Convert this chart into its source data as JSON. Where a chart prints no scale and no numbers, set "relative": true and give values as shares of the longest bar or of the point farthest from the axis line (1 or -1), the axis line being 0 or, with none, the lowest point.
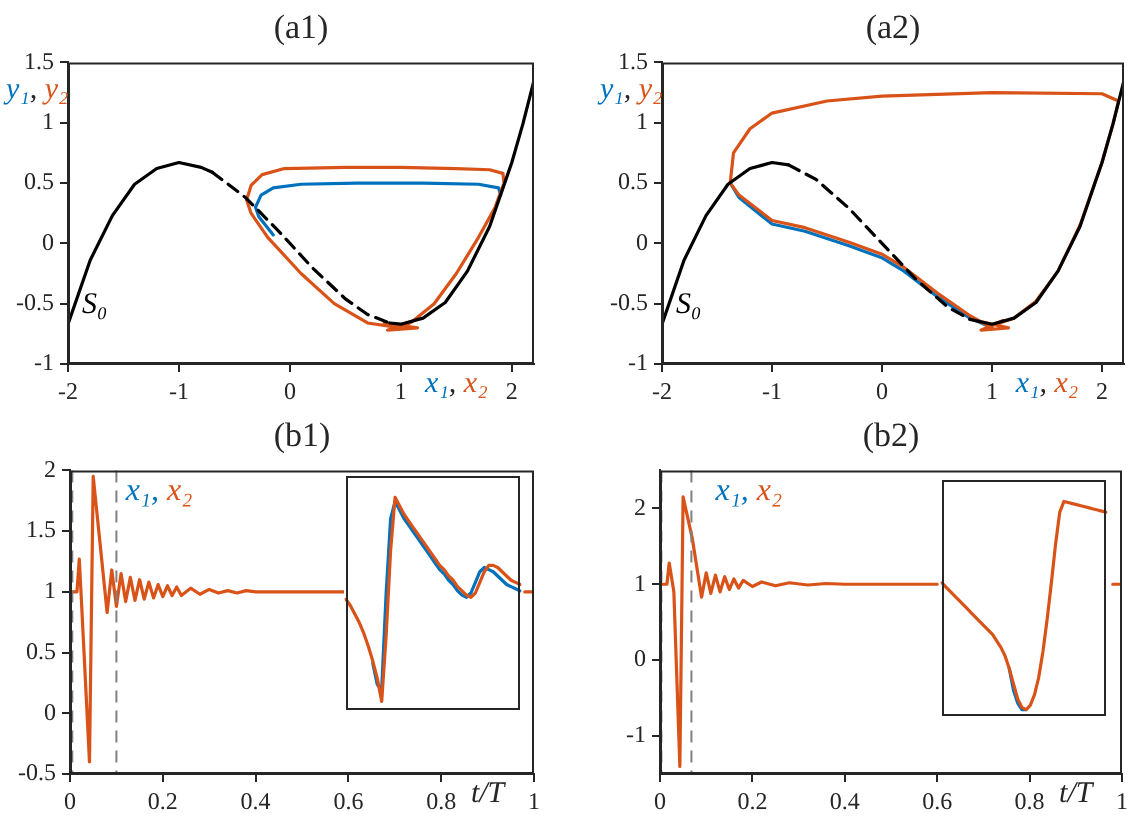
{
  "chart_data": [
    {
      "type": "line",
      "title": "(a1)",
      "xlabel": "x₁, x₂",
      "ylabel": "y₁, y₂",
      "xlim": [
        -2,
        2.2
      ],
      "xticks": [
        -2,
        -1,
        0,
        1,
        2
      ],
      "ylim": [
        -1,
        1.5
      ],
      "yticks": [
        -1,
        -0.5,
        0,
        0.5,
        1,
        1.5
      ],
      "series": [
        {
          "color": "#0072bd",
          "x": [
            -0.15,
            -0.28,
            -0.31,
            -0.26,
            -0.15,
            0.1,
            0.6,
            1.2,
            1.7,
            1.88,
            1.9
          ],
          "values": [
            0.07,
            0.22,
            0.3,
            0.4,
            0.46,
            0.49,
            0.5,
            0.5,
            0.49,
            0.46,
            0.4
          ]
        },
        {
          "color": "#d95319",
          "x": [
            1.0,
            0.7,
            0.4,
            0.1,
            -0.2,
            -0.35,
            -0.39,
            -0.35,
            -0.25,
            -0.05,
            0.5,
            1.0,
            1.5,
            1.8,
            1.92,
            1.93,
            1.85,
            1.7,
            1.5,
            1.3,
            1.1,
            1.0,
            0.85,
            1.15,
            0.88,
            1.12,
            0.92,
            1.08,
            1.0
          ],
          "values": [
            -0.7,
            -0.66,
            -0.5,
            -0.25,
            0.05,
            0.25,
            0.36,
            0.48,
            0.57,
            0.62,
            0.63,
            0.63,
            0.62,
            0.61,
            0.58,
            0.5,
            0.3,
            0.05,
            -0.25,
            -0.5,
            -0.65,
            -0.7,
            -0.66,
            -0.7,
            -0.72,
            -0.64,
            -0.7,
            -0.66,
            -0.68
          ]
        },
        {
          "name": "S₀",
          "color": "#000000",
          "line_style": "solid",
          "x": [
            -2,
            -1.8,
            -1.6,
            -1.4,
            -1.2,
            -1,
            -0.8,
            -0.7
          ],
          "values": [
            -0.67,
            -0.14,
            0.23,
            0.49,
            0.62,
            0.67,
            0.63,
            0.59
          ]
        },
        {
          "color": "#000000",
          "line_style": "dashed",
          "x": [
            -0.7,
            -0.4,
            -0.1,
            0.2,
            0.5,
            0.7,
            0.9
          ],
          "values": [
            0.59,
            0.38,
            0.1,
            -0.2,
            -0.46,
            -0.59,
            -0.66
          ]
        },
        {
          "color": "#000000",
          "line_style": "solid",
          "x": [
            0.9,
            1,
            1.2,
            1.4,
            1.6,
            1.8,
            2,
            2.1,
            2.2
          ],
          "values": [
            -0.66,
            -0.67,
            -0.62,
            -0.49,
            -0.23,
            0.14,
            0.67,
            0.99,
            1.35
          ]
        }
      ]
    },
    {
      "type": "line",
      "title": "(a2)",
      "xlabel": "x₁, x₂",
      "ylabel": "y₁, y₂",
      "xlim": [
        -2,
        2.2
      ],
      "xticks": [
        -2,
        -1,
        0,
        1,
        2
      ],
      "ylim": [
        -1,
        1.5
      ],
      "yticks": [
        -1,
        -0.5,
        0,
        0.5,
        1,
        1.5
      ],
      "series": [
        {
          "color": "#0072bd",
          "x": [
            1.0,
            0.8,
            0.5,
            0.2,
            0,
            -0.3,
            -0.7,
            -1.0,
            -1.3,
            -1.38
          ],
          "values": [
            -0.7,
            -0.62,
            -0.44,
            -0.23,
            -0.12,
            -0.02,
            0.1,
            0.16,
            0.38,
            0.5
          ]
        },
        {
          "color": "#d95319",
          "x": [
            1.0,
            0.8,
            0.5,
            0.2,
            0,
            -0.3,
            -0.7,
            -1.0,
            -1.3,
            -1.38,
            -1.35,
            -1.2,
            -1.0,
            -0.5,
            0,
            1,
            2.0,
            2.15,
            2.1,
            2.0,
            1.8,
            1.6,
            1.4,
            1.2,
            1.0,
            0.85,
            1.15,
            0.9,
            1.1,
            1.0
          ],
          "values": [
            -0.7,
            -0.6,
            -0.41,
            -0.2,
            -0.09,
            0.01,
            0.13,
            0.19,
            0.4,
            0.5,
            0.75,
            0.95,
            1.08,
            1.18,
            1.22,
            1.25,
            1.24,
            1.18,
            0.99,
            0.67,
            0.15,
            -0.23,
            -0.48,
            -0.62,
            -0.68,
            -0.64,
            -0.7,
            -0.72,
            -0.64,
            -0.68
          ]
        },
        {
          "name": "S₀",
          "color": "#000000",
          "line_style": "solid",
          "x": [
            -2,
            -1.8,
            -1.6,
            -1.4,
            -1.2,
            -1,
            -0.85
          ],
          "values": [
            -0.67,
            -0.14,
            0.23,
            0.49,
            0.62,
            0.67,
            0.65
          ]
        },
        {
          "color": "#000000",
          "line_style": "dashed",
          "x": [
            -0.85,
            -0.6,
            -0.3,
            0,
            0.3,
            0.6,
            0.8
          ],
          "values": [
            0.65,
            0.53,
            0.29,
            0,
            -0.29,
            -0.53,
            -0.63
          ]
        },
        {
          "color": "#000000",
          "line_style": "solid",
          "x": [
            0.8,
            1,
            1.2,
            1.4,
            1.6,
            1.8,
            2,
            2.1,
            2.2
          ],
          "values": [
            -0.63,
            -0.67,
            -0.62,
            -0.49,
            -0.23,
            0.14,
            0.67,
            0.99,
            1.35
          ]
        }
      ]
    },
    {
      "type": "line",
      "title": "(b1)",
      "xlabel": "t/T",
      "legend": "top left",
      "xlim": [
        0,
        1
      ],
      "xticks": [
        0,
        0.2,
        0.4,
        0.6,
        0.8,
        1
      ],
      "ylim": [
        -0.5,
        2
      ],
      "yticks": [
        -0.5,
        0,
        0.5,
        1,
        1.5,
        2
      ],
      "ref_lines": [
        {
          "axis": "x",
          "value": 0.005,
          "color": "#808080",
          "line_style": "dashed"
        },
        {
          "axis": "x",
          "value": 0.1,
          "color": "#808080",
          "line_style": "dashed"
        }
      ],
      "x": [
        0,
        0.015,
        0.02,
        0.025,
        0.042,
        0.05,
        0.08,
        0.09,
        0.1,
        0.11,
        0.12,
        0.13,
        0.14,
        0.15,
        0.16,
        0.17,
        0.18,
        0.19,
        0.2,
        0.21,
        0.22,
        0.23,
        0.24,
        0.26,
        0.28,
        0.3,
        0.32,
        0.34,
        0.36,
        0.38,
        0.4,
        0.6,
        0.8,
        0.98,
        1
      ],
      "series": [
        {
          "name": "x₁,",
          "color": "#0072bd",
          "values": [
            null,
            null,
            null,
            null,
            null,
            null,
            null,
            null,
            null,
            null,
            null,
            null,
            null,
            null,
            null,
            null,
            null,
            null,
            null,
            null,
            null,
            null,
            null,
            null,
            null,
            null,
            null,
            null,
            null,
            null,
            null,
            null,
            null,
            null,
            null
          ]
        },
        {
          "name": "x₂",
          "color": "#d95319",
          "values": [
            1,
            1,
            1.27,
            0.9,
            -0.4,
            1.95,
            0.83,
            1.18,
            0.88,
            1.15,
            0.92,
            1.12,
            0.93,
            1.1,
            0.94,
            1.08,
            0.95,
            1.06,
            0.96,
            1.05,
            0.97,
            1.04,
            0.97,
            1.03,
            0.98,
            1.02,
            0.99,
            1.01,
            0.99,
            1.01,
            1,
            1,
            null,
            1,
            1
          ]
        }
      ]
    },
    {
      "type": "line",
      "relative": true,
      "categories": [
        null,
        null,
        null,
        null,
        null,
        null,
        null,
        null,
        null,
        null,
        null,
        null,
        null,
        null,
        null,
        null,
        null,
        null,
        null,
        null,
        null,
        null,
        null,
        null,
        null,
        null,
        null,
        null,
        null,
        null,
        null,
        null,
        null,
        null,
        null,
        null,
        null,
        null,
        null,
        null
      ],
      "series": [
        {
          "color": "#0072bd",
          "values": [
            null,
            null,
            null,
            null,
            null,
            null,
            0.22,
            0.12,
            0.1,
            0.55,
            0.9,
            0.98,
            0.94,
            0.9,
            0.87,
            0.84,
            0.81,
            0.78,
            0.75,
            0.72,
            0.69,
            0.66,
            0.64,
            0.61,
            0.59,
            0.56,
            0.54,
            0.53,
            0.55,
            0.6,
            0.65,
            0.67,
            0.66,
            0.65,
            0.63,
            0.61,
            0.59,
            0.58,
            0.57,
            0.56
          ]
        },
        {
          "color": "#d95319",
          "values": [
            0.52,
            0.49,
            0.45,
            0.41,
            0.36,
            0.3,
            0.23,
            0.15,
            0.04,
            0.35,
            0.75,
            1,
            0.96,
            0.92,
            0.89,
            0.86,
            0.83,
            0.8,
            0.77,
            0.74,
            0.71,
            0.68,
            0.66,
            0.63,
            0.61,
            0.58,
            0.56,
            0.54,
            0.53,
            0.55,
            0.6,
            0.65,
            0.68,
            0.68,
            0.67,
            0.65,
            0.63,
            0.61,
            0.6,
            0.59
          ]
        }
      ]
    },
    {
      "type": "line",
      "title": "(b2)",
      "xlabel": "t/T",
      "legend": "top left",
      "xlim": [
        0,
        1
      ],
      "xticks": [
        0,
        0.2,
        0.4,
        0.6,
        0.8,
        1
      ],
      "ylim": [
        -1.5,
        2.5
      ],
      "yticks": [
        -1,
        0,
        1,
        2
      ],
      "ref_lines": [
        {
          "axis": "x",
          "value": 0.003,
          "color": "#808080",
          "line_style": "dashed"
        },
        {
          "axis": "x",
          "value": 0.068,
          "color": "#808080",
          "line_style": "dashed"
        }
      ],
      "x": [
        0,
        0.015,
        0.02,
        0.03,
        0.043,
        0.05,
        0.07,
        0.09,
        0.1,
        0.11,
        0.12,
        0.13,
        0.14,
        0.15,
        0.16,
        0.17,
        0.18,
        0.2,
        0.22,
        0.25,
        0.28,
        0.32,
        0.36,
        0.4,
        0.6,
        0.8,
        0.98,
        1
      ],
      "series": [
        {
          "name": "x₁,",
          "color": "#0072bd",
          "values": [
            null,
            null,
            null,
            null,
            null,
            null,
            null,
            null,
            null,
            null,
            null,
            null,
            null,
            null,
            null,
            null,
            null,
            null,
            null,
            null,
            null,
            null,
            null,
            null,
            null,
            null,
            null,
            null
          ]
        },
        {
          "name": "x₂",
          "color": "#d95319",
          "values": [
            1,
            1,
            1.28,
            0.9,
            -1.4,
            2.15,
            1.6,
            0.83,
            1.15,
            0.88,
            1.12,
            0.9,
            1.1,
            0.93,
            1.07,
            0.95,
            1.05,
            0.97,
            1.03,
            0.98,
            1.02,
            0.99,
            1.01,
            1,
            1,
            null,
            1,
            1
          ]
        }
      ]
    },
    {
      "type": "line",
      "relative": true,
      "categories": [
        null,
        null,
        null,
        null,
        null,
        null,
        null,
        null,
        null,
        null,
        null,
        null,
        null,
        null,
        null,
        null,
        null,
        null,
        null,
        null,
        null,
        null,
        null,
        null,
        null,
        null,
        null,
        null,
        null,
        null,
        null,
        null,
        null,
        null,
        null,
        null,
        null,
        null,
        null,
        null
      ],
      "series": [
        {
          "color": "#0072bd",
          "values": [
            null,
            null,
            null,
            null,
            null,
            null,
            null,
            null,
            null,
            null,
            null,
            null,
            null,
            null,
            null,
            null,
            0.22,
            0.12,
            0.06,
            0.03,
            0.03,
            null,
            null,
            null,
            null,
            null,
            null,
            null,
            null,
            null,
            null,
            null,
            null,
            null,
            null,
            null,
            null,
            null,
            null,
            null
          ]
        },
        {
          "color": "#d95319",
          "values": [
            0.62,
            0.6,
            0.58,
            0.56,
            0.54,
            0.52,
            0.5,
            0.48,
            0.46,
            0.44,
            0.42,
            0.4,
            0.38,
            0.35,
            0.32,
            0.28,
            0.22,
            0.15,
            0.08,
            0.04,
            0.03,
            0.05,
            0.1,
            0.18,
            0.3,
            0.45,
            0.62,
            0.8,
            0.95,
            1,
            0.995,
            0.99,
            0.985,
            0.98,
            0.975,
            0.97,
            0.965,
            0.96,
            0.955,
            0.95
          ]
        }
      ]
    }
  ]
}
